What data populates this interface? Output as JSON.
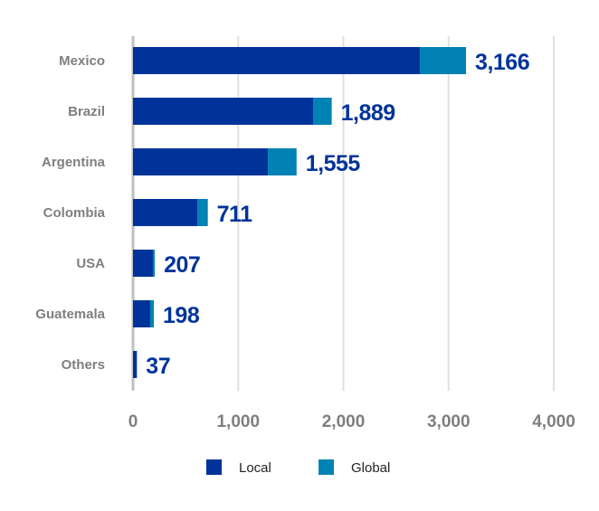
{
  "chart_data": {
    "type": "bar",
    "orientation": "horizontal",
    "stacked": true,
    "categories": [
      "Mexico",
      "Brazil",
      "Argentina",
      "Colombia",
      "USA",
      "Guatemala",
      "Others"
    ],
    "series": [
      {
        "name": "Local",
        "color": "#003399",
        "values": [
          2727,
          1712,
          1282,
          611,
          189,
          163,
          37
        ]
      },
      {
        "name": "Global",
        "color": "#0082b4",
        "values": [
          439,
          177,
          273,
          100,
          18,
          35,
          0
        ]
      }
    ],
    "totals_labels": [
      "3,166",
      "1,889",
      "1,555",
      "711",
      "207",
      "198",
      "37"
    ],
    "xlim": [
      0,
      4000
    ],
    "xticks": [
      0,
      1000,
      2000,
      3000,
      4000
    ],
    "xtick_labels": [
      "0",
      "1,000",
      "2,000",
      "3,000",
      "4,000"
    ],
    "grid": "vertical",
    "legend_position": "bottom",
    "colors": {
      "category_label": "#7f7f7f",
      "total_label": "#003399",
      "grid": "#e0e0e0",
      "axis": "#bfbfbf"
    }
  }
}
